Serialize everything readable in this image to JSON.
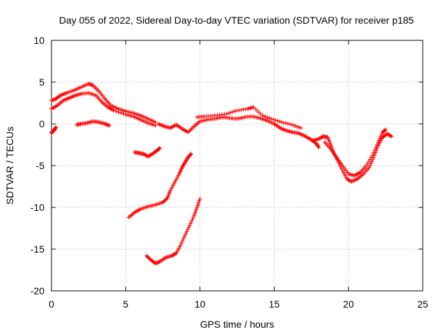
{
  "chart_data": {
    "type": "scatter",
    "title": "Day 055 of 2022, Sidereal Day-to-day VTEC variation (SDTVAR) for receiver p185",
    "xlabel": "GPS time / hours",
    "ylabel": "SDTVAR / TECUs",
    "xlim": [
      0,
      25
    ],
    "ylim": [
      -20,
      10
    ],
    "xticks": [
      0,
      5,
      10,
      15,
      20,
      25
    ],
    "yticks": [
      -20,
      -15,
      -10,
      -5,
      0,
      5,
      10
    ],
    "xtick_labels": [
      "0",
      "5",
      "10",
      "15",
      "20",
      "25"
    ],
    "ytick_labels": [
      "-20",
      "-15",
      "-10",
      "-5",
      "0",
      "5",
      "10"
    ],
    "grid": true,
    "marker": "plus",
    "color": "#ff0000",
    "series": [
      {
        "name": "main-trace-upper",
        "points": [
          [
            0,
            2.8
          ],
          [
            0.3,
            3.0
          ],
          [
            0.6,
            3.4
          ],
          [
            1.0,
            3.7
          ],
          [
            1.5,
            4.0
          ],
          [
            2.0,
            4.4
          ],
          [
            2.5,
            4.8
          ],
          [
            2.8,
            4.6
          ],
          [
            3.2,
            3.9
          ],
          [
            3.6,
            3.0
          ],
          [
            4.0,
            2.2
          ],
          [
            4.5,
            1.8
          ],
          [
            5.0,
            1.5
          ],
          [
            5.5,
            1.3
          ],
          [
            6.0,
            1.0
          ],
          [
            6.5,
            0.6
          ],
          [
            7.0,
            0.2
          ]
        ]
      },
      {
        "name": "main-trace-lower",
        "points": [
          [
            0,
            1.8
          ],
          [
            0.4,
            2.2
          ],
          [
            0.8,
            2.8
          ],
          [
            1.2,
            3.1
          ],
          [
            1.6,
            3.4
          ],
          [
            2.0,
            3.6
          ],
          [
            2.5,
            3.7
          ],
          [
            3.0,
            3.4
          ],
          [
            3.4,
            2.6
          ],
          [
            3.8,
            2.0
          ],
          [
            4.2,
            1.6
          ],
          [
            5.0,
            1.1
          ],
          [
            5.5,
            0.9
          ],
          [
            6.0,
            0.5
          ],
          [
            6.5,
            0.1
          ],
          [
            7.0,
            -0.2
          ]
        ]
      },
      {
        "name": "main-trace-mid",
        "points": [
          [
            7.2,
            0.0
          ],
          [
            7.6,
            -0.3
          ],
          [
            8.0,
            -0.5
          ],
          [
            8.4,
            -0.1
          ],
          [
            8.8,
            -0.6
          ],
          [
            9.2,
            -1.0
          ],
          [
            9.6,
            -0.3
          ],
          [
            10.0,
            0.3
          ],
          [
            10.5,
            0.5
          ],
          [
            11.0,
            0.6
          ],
          [
            11.5,
            0.8
          ],
          [
            12.0,
            0.7
          ],
          [
            12.5,
            0.6
          ],
          [
            13.0,
            0.8
          ],
          [
            13.5,
            0.9
          ],
          [
            14.0,
            0.7
          ],
          [
            14.5,
            0.4
          ],
          [
            15.0,
            0.0
          ],
          [
            15.4,
            -0.5
          ],
          [
            15.8,
            -0.8
          ],
          [
            16.2,
            -1.0
          ],
          [
            16.6,
            -1.1
          ],
          [
            17.0,
            -1.4
          ],
          [
            17.4,
            -1.8
          ],
          [
            17.8,
            -2.3
          ],
          [
            18.0,
            -2.8
          ]
        ]
      },
      {
        "name": "main-trace-mid-upper",
        "points": [
          [
            9.8,
            0.8
          ],
          [
            10.3,
            0.9
          ],
          [
            11.0,
            1.0
          ],
          [
            11.8,
            1.2
          ],
          [
            12.5,
            1.6
          ],
          [
            13.2,
            1.8
          ],
          [
            13.6,
            2.0
          ],
          [
            14.2,
            1.0
          ],
          [
            14.8,
            0.6
          ],
          [
            15.5,
            0.2
          ],
          [
            16.2,
            -0.1
          ],
          [
            16.8,
            -0.5
          ]
        ]
      },
      {
        "name": "main-trace-late-a",
        "points": [
          [
            17.6,
            -2.0
          ],
          [
            18.0,
            -1.8
          ],
          [
            18.3,
            -1.5
          ],
          [
            18.6,
            -1.6
          ],
          [
            18.8,
            -2.5
          ],
          [
            19.0,
            -3.5
          ],
          [
            19.3,
            -4.5
          ],
          [
            19.6,
            -5.6
          ],
          [
            19.9,
            -6.6
          ],
          [
            20.2,
            -6.9
          ],
          [
            20.6,
            -6.6
          ],
          [
            21.0,
            -6.0
          ],
          [
            21.4,
            -5.2
          ],
          [
            21.7,
            -4.0
          ],
          [
            22.0,
            -2.6
          ],
          [
            22.3,
            -1.6
          ],
          [
            22.6,
            -1.2
          ],
          [
            22.9,
            -1.5
          ]
        ]
      },
      {
        "name": "main-trace-late-b",
        "points": [
          [
            18.4,
            -2.2
          ],
          [
            18.8,
            -3.0
          ],
          [
            19.2,
            -4.0
          ],
          [
            19.6,
            -5.0
          ],
          [
            20.0,
            -6.0
          ],
          [
            20.4,
            -6.2
          ],
          [
            20.8,
            -5.8
          ],
          [
            21.2,
            -5.0
          ],
          [
            21.6,
            -3.8
          ],
          [
            22.0,
            -2.2
          ],
          [
            22.3,
            -1.0
          ],
          [
            22.5,
            -0.7
          ]
        ]
      },
      {
        "name": "short-arc-near-zero",
        "points": [
          [
            1.7,
            -0.1
          ],
          [
            2.0,
            0.0
          ],
          [
            2.4,
            0.1
          ],
          [
            2.8,
            0.3
          ],
          [
            3.2,
            0.2
          ],
          [
            3.6,
            0.0
          ],
          [
            3.9,
            -0.2
          ]
        ]
      },
      {
        "name": "start-segment",
        "points": [
          [
            0.0,
            -1.1
          ],
          [
            0.1,
            -0.9
          ],
          [
            0.2,
            -0.7
          ],
          [
            0.3,
            -0.4
          ]
        ]
      },
      {
        "name": "segment-near-minus-3.5",
        "points": [
          [
            5.6,
            -3.4
          ],
          [
            5.9,
            -3.5
          ],
          [
            6.2,
            -3.6
          ],
          [
            6.5,
            -3.9
          ],
          [
            6.8,
            -3.6
          ],
          [
            7.1,
            -3.2
          ],
          [
            7.3,
            -2.9
          ]
        ]
      },
      {
        "name": "rising-segment-1",
        "points": [
          [
            5.2,
            -11.2
          ],
          [
            5.6,
            -10.6
          ],
          [
            6.0,
            -10.2
          ],
          [
            6.5,
            -9.9
          ],
          [
            7.0,
            -9.7
          ],
          [
            7.5,
            -9.4
          ],
          [
            7.8,
            -8.9
          ],
          [
            8.0,
            -8.0
          ],
          [
            8.3,
            -7.0
          ],
          [
            8.6,
            -6.0
          ],
          [
            8.8,
            -5.2
          ],
          [
            9.0,
            -4.6
          ],
          [
            9.2,
            -4.0
          ],
          [
            9.4,
            -3.6
          ]
        ]
      },
      {
        "name": "rising-segment-2",
        "points": [
          [
            6.4,
            -15.8
          ],
          [
            6.7,
            -16.3
          ],
          [
            7.0,
            -16.7
          ],
          [
            7.3,
            -16.5
          ],
          [
            7.7,
            -16.0
          ],
          [
            8.1,
            -15.8
          ],
          [
            8.4,
            -15.5
          ],
          [
            8.7,
            -14.5
          ],
          [
            9.0,
            -13.3
          ],
          [
            9.3,
            -12.2
          ],
          [
            9.6,
            -11.0
          ],
          [
            9.8,
            -10.0
          ],
          [
            10.0,
            -9.0
          ]
        ]
      }
    ]
  }
}
